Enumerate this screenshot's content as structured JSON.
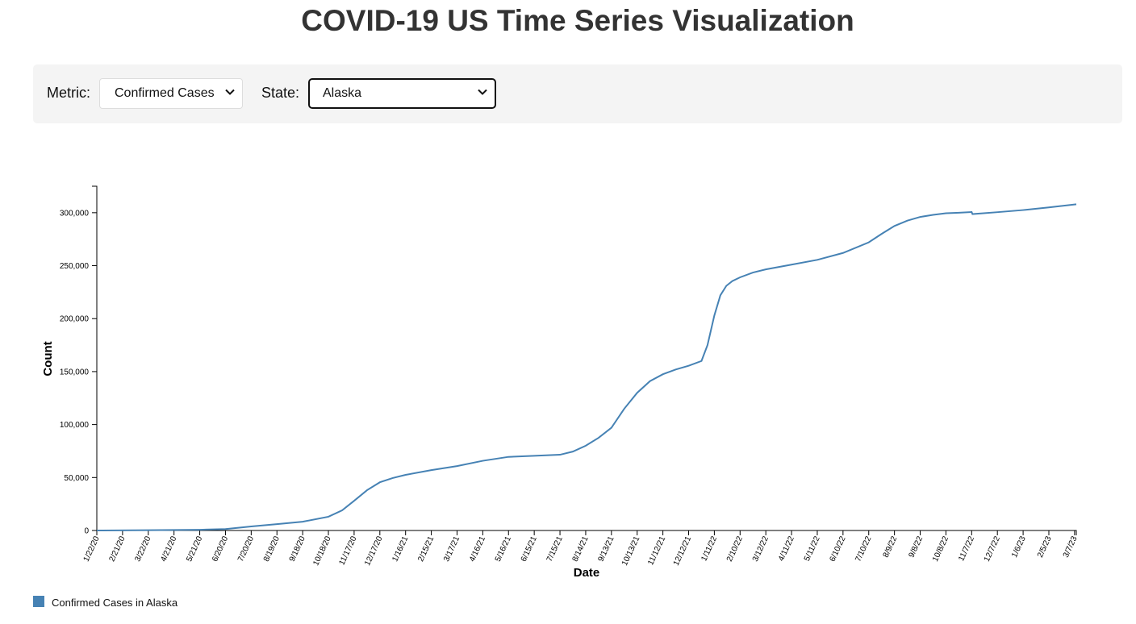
{
  "header": {
    "title": "COVID-19 US Time Series Visualization"
  },
  "controls": {
    "metric_label": "Metric:",
    "metric_value": "Confirmed Cases",
    "state_label": "State:",
    "state_value": "Alaska",
    "chevron_icon": "chevron-down-icon"
  },
  "legend": {
    "label": "Confirmed Cases in Alaska"
  },
  "colors": {
    "line": "#4682b4",
    "axis": "#000000",
    "panel": "#f4f4f4"
  },
  "chart_data": {
    "type": "line",
    "xlabel": "Date",
    "ylabel": "Count",
    "xlim": [
      "2020-01-22",
      "2023-03-09"
    ],
    "ylim": [
      0,
      325000
    ],
    "grid": false,
    "legend_position": "bottom-left",
    "x_tick_labels": [
      "1/22/20",
      "2/21/20",
      "3/22/20",
      "4/21/20",
      "5/21/20",
      "6/20/20",
      "7/20/20",
      "8/19/20",
      "9/18/20",
      "10/18/20",
      "11/17/20",
      "12/17/20",
      "1/16/21",
      "2/15/21",
      "3/17/21",
      "4/16/21",
      "5/16/21",
      "6/15/21",
      "7/15/21",
      "8/14/21",
      "9/13/21",
      "10/13/21",
      "11/12/21",
      "12/12/21",
      "1/11/22",
      "2/10/22",
      "3/12/22",
      "4/11/22",
      "5/11/22",
      "6/10/22",
      "7/10/22",
      "8/9/22",
      "9/8/22",
      "10/8/22",
      "11/7/22",
      "12/7/22",
      "1/6/23",
      "2/5/23",
      "3/7/23"
    ],
    "y_ticks": [
      0,
      50000,
      100000,
      150000,
      200000,
      250000,
      300000
    ],
    "y_tick_labels": [
      "0",
      "50,000",
      "100,000",
      "150,000",
      "200,000",
      "250,000",
      "300,000"
    ],
    "series": [
      {
        "name": "Confirmed Cases in Alaska",
        "x": [
          "2020-01-22",
          "2020-03-22",
          "2020-05-21",
          "2020-06-20",
          "2020-07-20",
          "2020-08-19",
          "2020-09-18",
          "2020-10-18",
          "2020-11-03",
          "2020-11-17",
          "2020-12-02",
          "2020-12-17",
          "2021-01-01",
          "2021-01-16",
          "2021-02-15",
          "2021-03-17",
          "2021-04-16",
          "2021-05-16",
          "2021-06-15",
          "2021-07-15",
          "2021-07-30",
          "2021-08-14",
          "2021-08-29",
          "2021-09-13",
          "2021-09-28",
          "2021-10-13",
          "2021-10-28",
          "2021-11-12",
          "2021-11-27",
          "2021-12-12",
          "2021-12-27",
          "2022-01-03",
          "2022-01-11",
          "2022-01-18",
          "2022-01-25",
          "2022-02-01",
          "2022-02-10",
          "2022-02-25",
          "2022-03-12",
          "2022-04-11",
          "2022-05-11",
          "2022-06-10",
          "2022-07-10",
          "2022-07-25",
          "2022-08-09",
          "2022-08-24",
          "2022-09-08",
          "2022-09-23",
          "2022-10-08",
          "2022-10-23",
          "2022-11-07",
          "2022-11-08",
          "2022-12-07",
          "2023-01-06",
          "2023-02-05",
          "2023-03-09"
        ],
        "values": [
          0,
          300,
          700,
          1300,
          3800,
          6000,
          8300,
          13000,
          19000,
          28000,
          38000,
          45500,
          49500,
          52500,
          57000,
          60800,
          65800,
          69500,
          70500,
          71500,
          74500,
          80000,
          87500,
          97000,
          115000,
          130000,
          141000,
          147500,
          152000,
          155500,
          160000,
          175000,
          203000,
          222000,
          231000,
          235500,
          239000,
          243500,
          246500,
          251000,
          255500,
          262000,
          272000,
          280000,
          287500,
          292500,
          296000,
          298000,
          299500,
          300000,
          300600,
          298700,
          300500,
          302500,
          305000,
          308000
        ]
      }
    ]
  }
}
